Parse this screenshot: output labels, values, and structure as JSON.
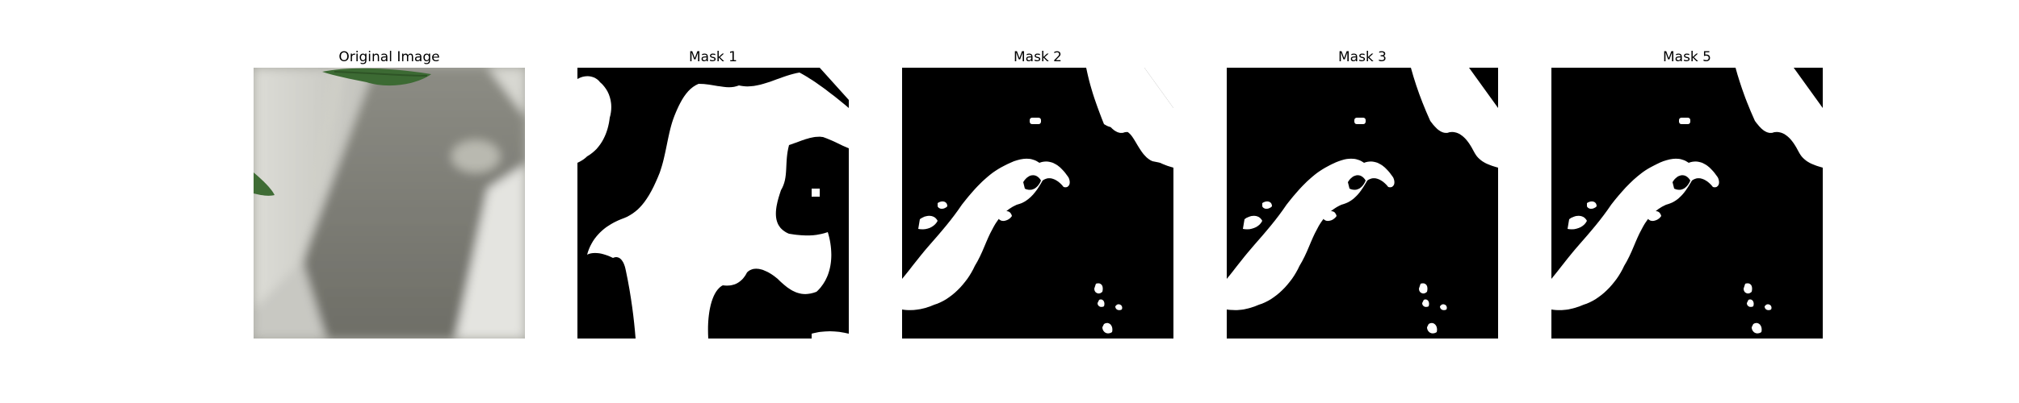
{
  "panels": [
    {
      "title": "Original Image",
      "kind": "photo"
    },
    {
      "title": "Mask 1",
      "kind": "mask"
    },
    {
      "title": "Mask 2",
      "kind": "mask"
    },
    {
      "title": "Mask 3",
      "kind": "mask"
    },
    {
      "title": "Mask 5",
      "kind": "mask"
    }
  ],
  "colors": {
    "mask_bg": "#000000",
    "mask_fg": "#ffffff"
  }
}
